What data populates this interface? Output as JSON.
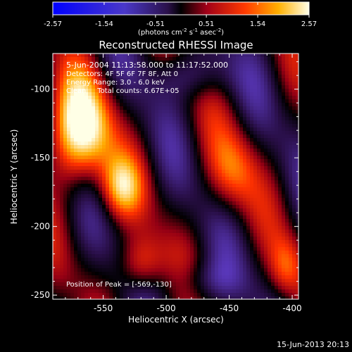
{
  "chart_data": {
    "type": "heatmap",
    "title": "Reconstructed RHESSI Image",
    "xlabel": "Heliocentric X (arcsec)",
    "ylabel": "Heliocentric Y (arcsec)",
    "xlim": [
      -590,
      -395
    ],
    "ylim": [
      -253,
      -74
    ],
    "x_ticks": [
      -550,
      -500,
      -450,
      -400
    ],
    "y_ticks": [
      -100,
      -150,
      -200,
      -250
    ],
    "x_tick_labels": [
      "-550",
      "-500",
      "-450",
      "-400"
    ],
    "y_tick_labels": [
      "-100",
      "-150",
      "-200",
      "-250"
    ],
    "colorbar": {
      "min": -2.57,
      "max": 2.57,
      "ticks": [
        -2.57,
        -1.54,
        -0.51,
        0.51,
        1.54,
        2.57
      ],
      "tick_labels": [
        "-2.57",
        "-1.54",
        "-0.51",
        "0.51",
        "1.54",
        "2.57"
      ],
      "units_prefix": "(photons cm",
      "units_exp1": "-2",
      "units_mid": " s",
      "units_exp2": "-1",
      "units_suffix": " asec",
      "units_exp3": "-2",
      "units_end": ")"
    },
    "annotations": [
      "5-Jun-2004 11:13:58.000 to 11:17:52.000",
      "Detectors: 4F 5F 6F 7F 8F, Att 0",
      "Energy Range: 3.0 - 6.0 keV",
      "Clean     Total counts: 6.67E+05"
    ],
    "peak_label": "Position of Peak = [-569,-130]",
    "peak_position": [
      -569,
      -130
    ]
  },
  "footer_date": "15-Jun-2013 20:13"
}
